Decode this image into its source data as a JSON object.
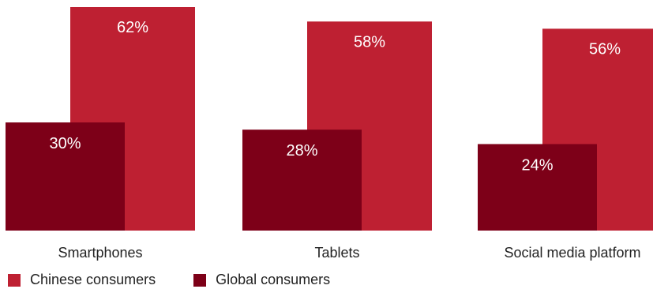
{
  "chart_data": {
    "type": "bar",
    "categories": [
      "Smartphones",
      "Tablets",
      "Social media platform"
    ],
    "series": [
      {
        "name": "Chinese consumers",
        "values": [
          62,
          58,
          56
        ],
        "labels": [
          "62%",
          "58%",
          "56%"
        ],
        "color": "#BE2032"
      },
      {
        "name": "Global consumers",
        "values": [
          30,
          28,
          24
        ],
        "labels": [
          "30%",
          "28%",
          "24%"
        ],
        "color": "#7D0018"
      }
    ],
    "ylim": [
      0,
      64
    ],
    "grid": false,
    "legend_position": "bottom-left"
  }
}
